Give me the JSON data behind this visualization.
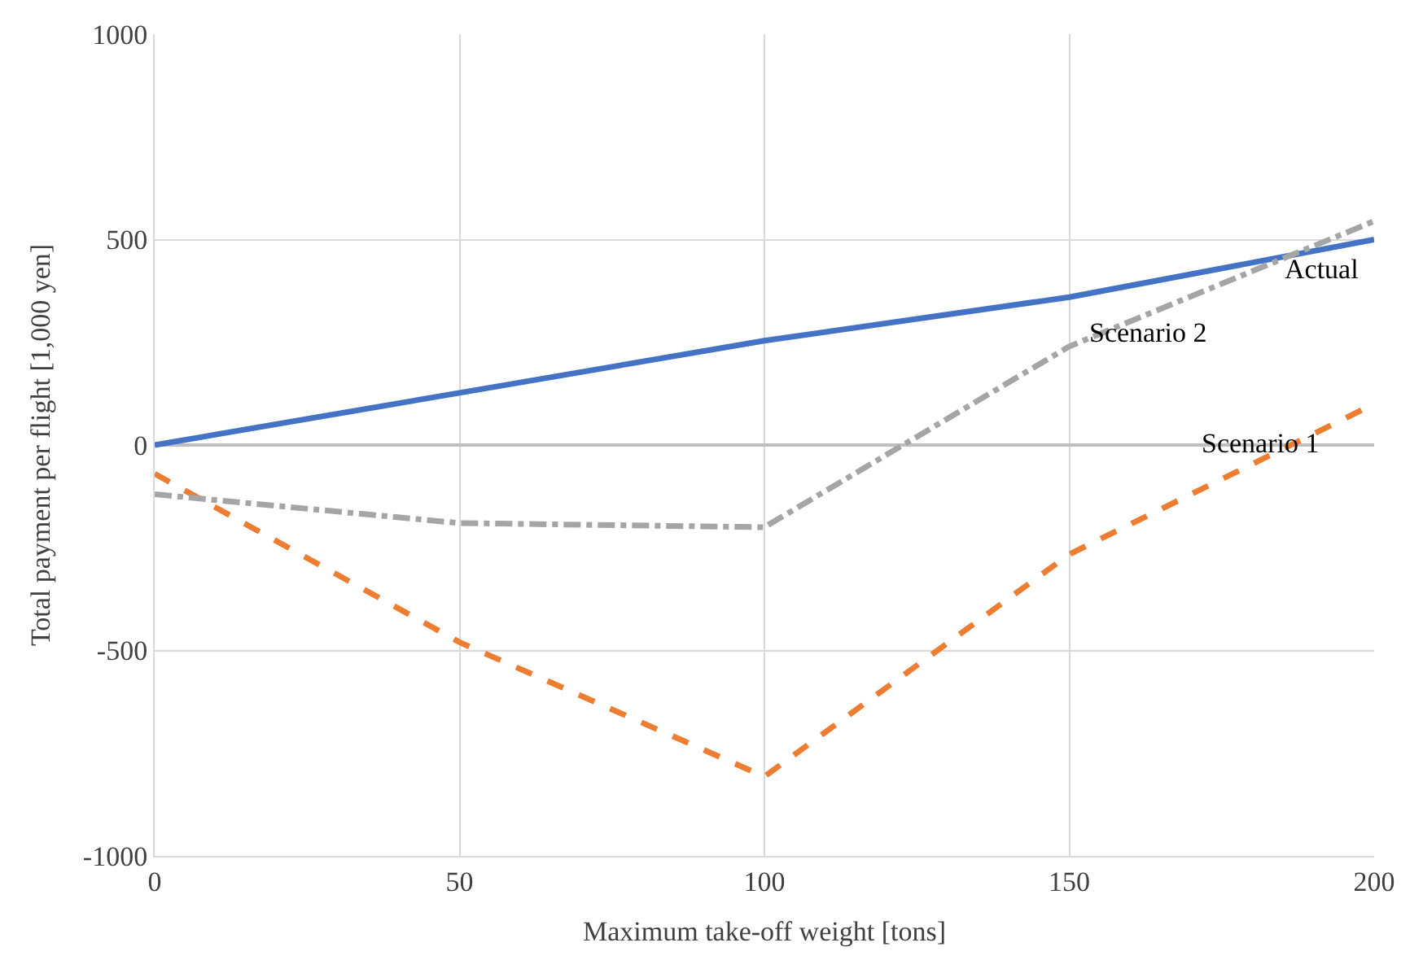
{
  "chart_data": {
    "type": "line",
    "xlabel": "Maximum take-off weight [tons]",
    "ylabel": "Total payment per flight [1,000 yen]",
    "x": [
      0,
      50,
      100,
      150,
      200
    ],
    "series": [
      {
        "name": "Actual",
        "color": "#4472c4",
        "line_style": "solid",
        "values": [
          0,
          127,
          254,
          360,
          500
        ]
      },
      {
        "name": "Scenario 1",
        "color": "#ed7d31",
        "line_style": "dashed",
        "values": [
          -70,
          -480,
          -807,
          -266,
          100
        ]
      },
      {
        "name": "Scenario 2",
        "color": "#a5a5a5",
        "line_style": "dashdot",
        "values": [
          -120,
          -190,
          -200,
          240,
          545
        ]
      }
    ],
    "xlim": [
      0,
      200
    ],
    "xticks": [
      0,
      50,
      100,
      150,
      200
    ],
    "ylim": [
      -1000,
      1000
    ],
    "yticks": [
      -1000,
      -500,
      0,
      500,
      1000
    ],
    "grid": true,
    "legend": false,
    "marker": "none"
  }
}
